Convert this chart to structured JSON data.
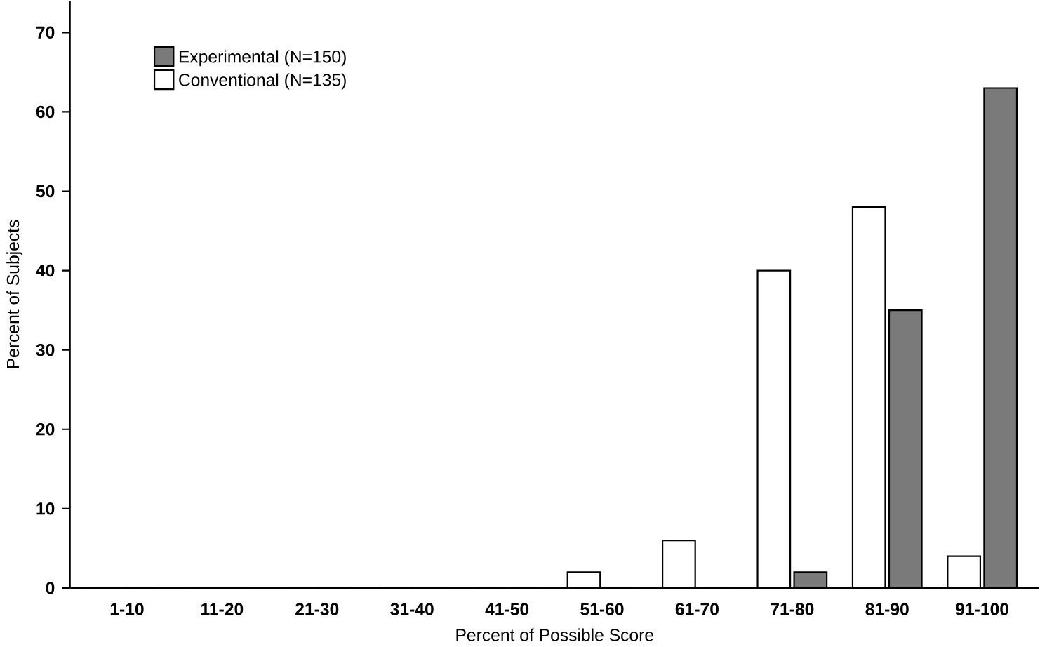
{
  "chart_data": {
    "type": "bar",
    "xlabel": "Percent of Possible Score",
    "ylabel": "Percent of Subjects",
    "categories": [
      "1-10",
      "11-20",
      "21-30",
      "31-40",
      "41-50",
      "51-60",
      "61-70",
      "71-80",
      "81-90",
      "91-100"
    ],
    "series": [
      {
        "name": "Conventional (N=135)",
        "color": "#ffffff",
        "values": [
          0,
          0,
          0,
          0,
          0,
          2,
          6,
          40,
          48,
          4
        ]
      },
      {
        "name": "Experimental (N=150)",
        "color": "#7a7a7a",
        "values": [
          0,
          0,
          0,
          0,
          0,
          0,
          0,
          2,
          35,
          63
        ]
      }
    ],
    "ylim": [
      0,
      74
    ],
    "yticks": [
      0,
      10,
      20,
      30,
      40,
      50,
      60,
      70
    ],
    "grid": false,
    "legend": "top left"
  }
}
